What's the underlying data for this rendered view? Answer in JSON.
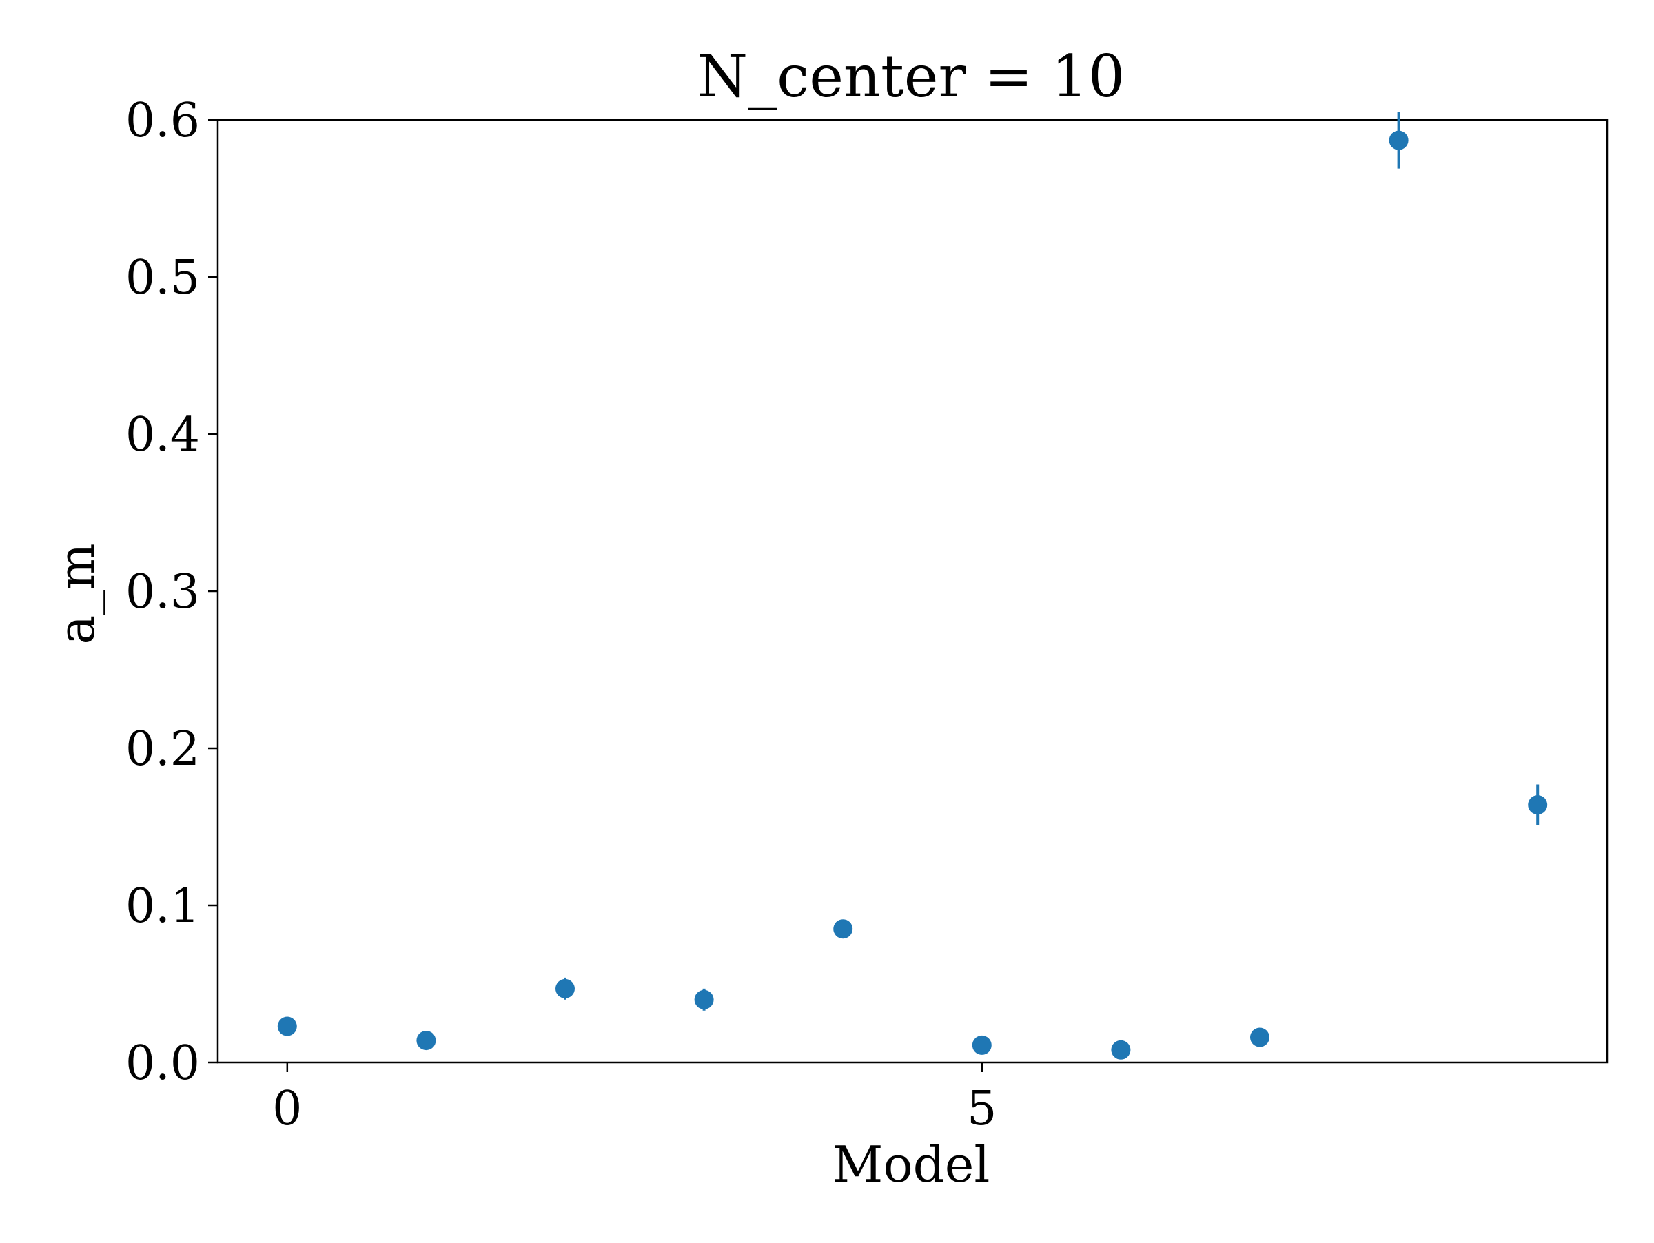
{
  "chart_data": {
    "type": "scatter",
    "title": "N_center = 10",
    "xlabel": "Model",
    "ylabel": "a_m",
    "xlim": [
      -0.5,
      9.5
    ],
    "ylim": [
      0.0,
      0.6
    ],
    "xticks": [
      0,
      5
    ],
    "xtick_labels": [
      "0",
      "5"
    ],
    "yticks": [
      0.0,
      0.1,
      0.2,
      0.3,
      0.4,
      0.5,
      0.6
    ],
    "ytick_labels": [
      "0.0",
      "0.1",
      "0.2",
      "0.3",
      "0.4",
      "0.5",
      "0.6"
    ],
    "grid": false,
    "legend": "none",
    "color": "#1f77b4",
    "series": [
      {
        "x": [
          0,
          1,
          2,
          3,
          4,
          5,
          6,
          7,
          8,
          9
        ],
        "y": [
          0.023,
          0.014,
          0.047,
          0.04,
          0.085,
          0.011,
          0.008,
          0.016,
          0.587,
          0.164
        ],
        "yerr": [
          0.002,
          0.002,
          0.007,
          0.007,
          0.003,
          0.002,
          0.002,
          0.002,
          0.018,
          0.013
        ]
      }
    ]
  }
}
